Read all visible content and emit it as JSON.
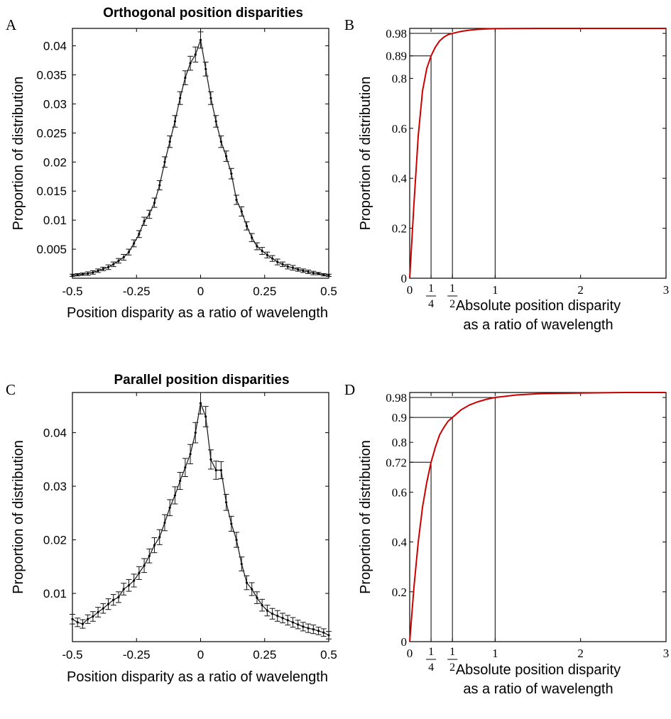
{
  "chart_data": [
    {
      "panel_letter": "A",
      "type": "line",
      "title": "Orthogonal position disparities",
      "xlabel": "Position disparity as a ratio of wavelength",
      "ylabel": "Proportion of distribution",
      "xlim": [
        -0.5,
        0.5
      ],
      "ylim": [
        0,
        0.043
      ],
      "xticks": [
        -0.5,
        -0.25,
        0,
        0.25,
        0.5
      ],
      "xtick_labels": [
        "-0.5",
        "-0.25",
        "0",
        "0.25",
        "0.5"
      ],
      "yticks": [
        0.005,
        0.01,
        0.015,
        0.02,
        0.025,
        0.03,
        0.035,
        0.04
      ],
      "ytick_labels": [
        "0.005",
        "0.01",
        "0.015",
        "0.02",
        "0.025",
        "0.03",
        "0.035",
        "0.04"
      ],
      "error_bars": true,
      "series": [
        {
          "color": "#222222",
          "x": [
            -0.5,
            -0.48,
            -0.46,
            -0.44,
            -0.42,
            -0.4,
            -0.38,
            -0.36,
            -0.34,
            -0.32,
            -0.3,
            -0.28,
            -0.26,
            -0.24,
            -0.22,
            -0.2,
            -0.18,
            -0.16,
            -0.14,
            -0.12,
            -0.1,
            -0.08,
            -0.06,
            -0.04,
            -0.02,
            0,
            0.02,
            0.04,
            0.06,
            0.08,
            0.1,
            0.12,
            0.14,
            0.16,
            0.18,
            0.2,
            0.22,
            0.24,
            0.26,
            0.28,
            0.3,
            0.32,
            0.34,
            0.36,
            0.38,
            0.4,
            0.42,
            0.44,
            0.46,
            0.48,
            0.5
          ],
          "y": [
            0.0005,
            0.0006,
            0.0007,
            0.0008,
            0.001,
            0.0013,
            0.0016,
            0.0019,
            0.0024,
            0.003,
            0.0036,
            0.0045,
            0.006,
            0.0076,
            0.0098,
            0.011,
            0.013,
            0.016,
            0.02,
            0.0235,
            0.027,
            0.031,
            0.0345,
            0.037,
            0.0385,
            0.041,
            0.036,
            0.031,
            0.027,
            0.0235,
            0.021,
            0.018,
            0.0135,
            0.0115,
            0.009,
            0.007,
            0.0055,
            0.0047,
            0.004,
            0.0034,
            0.0028,
            0.0024,
            0.002,
            0.0018,
            0.0015,
            0.0013,
            0.0011,
            0.0009,
            0.0008,
            0.0006,
            0.0005
          ],
          "err": [
            0.0002,
            0.0002,
            0.0002,
            0.0003,
            0.0003,
            0.0003,
            0.0003,
            0.0004,
            0.0004,
            0.0004,
            0.0005,
            0.0005,
            0.0006,
            0.0006,
            0.0007,
            0.0007,
            0.0008,
            0.0008,
            0.0009,
            0.001,
            0.001,
            0.0011,
            0.0012,
            0.0012,
            0.0013,
            0.0014,
            0.0012,
            0.0011,
            0.001,
            0.001,
            0.0009,
            0.0009,
            0.0008,
            0.0008,
            0.0007,
            0.0007,
            0.0006,
            0.0006,
            0.0005,
            0.0005,
            0.0005,
            0.0004,
            0.0004,
            0.0004,
            0.0003,
            0.0003,
            0.0003,
            0.0003,
            0.0002,
            0.0002,
            0.0002
          ]
        }
      ]
    },
    {
      "panel_letter": "B",
      "type": "line",
      "title": "",
      "xlabel_lines": [
        "Absolute position disparity",
        "as a ratio of wavelength"
      ],
      "ylabel": "Proportion of distribution",
      "xlim": [
        0,
        3
      ],
      "ylim": [
        0,
        1
      ],
      "xticks": [
        0,
        0.25,
        0.5,
        1,
        2,
        3
      ],
      "xtick_labels": [
        "0",
        "1/4",
        "1/2",
        "1",
        "2",
        "3"
      ],
      "yticks": [
        0,
        0.2,
        0.4,
        0.6,
        0.8,
        0.89,
        0.98
      ],
      "ytick_labels": [
        "0",
        "0.2",
        "0.4",
        "0.6",
        "0.8",
        "0.89",
        "0.98"
      ],
      "reference_lines": [
        {
          "x": 0.25,
          "y": 0.89
        },
        {
          "x": 0.5,
          "y": 0.98
        },
        {
          "x": 1,
          "y": 1
        }
      ],
      "series": [
        {
          "color": "#cc0000",
          "x": [
            0,
            0.05,
            0.1,
            0.15,
            0.2,
            0.25,
            0.3,
            0.35,
            0.4,
            0.45,
            0.5,
            0.6,
            0.7,
            0.8,
            0.9,
            1,
            1.5,
            2,
            2.5,
            3
          ],
          "y": [
            0,
            0.3,
            0.57,
            0.75,
            0.84,
            0.89,
            0.925,
            0.95,
            0.965,
            0.975,
            0.98,
            0.988,
            0.993,
            0.996,
            0.998,
            0.999,
            1,
            1,
            1,
            1
          ]
        }
      ]
    },
    {
      "panel_letter": "C",
      "type": "line",
      "title": "Parallel position disparities",
      "xlabel": "Position disparity as a ratio of wavelength",
      "ylabel": "Proportion of distribution",
      "xlim": [
        -0.5,
        0.5
      ],
      "ylim": [
        0.001,
        0.0475
      ],
      "xticks": [
        -0.5,
        -0.25,
        0,
        0.25,
        0.5
      ],
      "xtick_labels": [
        "-0.5",
        "-0.25",
        "0",
        "0.25",
        "0.5"
      ],
      "yticks": [
        0.01,
        0.02,
        0.03,
        0.04
      ],
      "ytick_labels": [
        "0.01",
        "0.02",
        "0.03",
        "0.04"
      ],
      "error_bars": true,
      "series": [
        {
          "color": "#222222",
          "x": [
            -0.5,
            -0.48,
            -0.46,
            -0.44,
            -0.42,
            -0.4,
            -0.38,
            -0.36,
            -0.34,
            -0.32,
            -0.3,
            -0.28,
            -0.26,
            -0.24,
            -0.22,
            -0.2,
            -0.18,
            -0.16,
            -0.14,
            -0.12,
            -0.1,
            -0.08,
            -0.06,
            -0.04,
            -0.02,
            0,
            0.02,
            0.04,
            0.06,
            0.08,
            0.1,
            0.12,
            0.14,
            0.16,
            0.18,
            0.2,
            0.22,
            0.24,
            0.26,
            0.28,
            0.3,
            0.32,
            0.34,
            0.36,
            0.38,
            0.4,
            0.42,
            0.44,
            0.46,
            0.48,
            0.5
          ],
          "y": [
            0.0052,
            0.0046,
            0.0043,
            0.0052,
            0.0057,
            0.0065,
            0.0072,
            0.008,
            0.0088,
            0.0093,
            0.0108,
            0.0115,
            0.0124,
            0.0138,
            0.0152,
            0.017,
            0.019,
            0.0205,
            0.0232,
            0.026,
            0.0283,
            0.031,
            0.0335,
            0.036,
            0.04,
            0.0455,
            0.043,
            0.035,
            0.033,
            0.033,
            0.027,
            0.023,
            0.02,
            0.0155,
            0.012,
            0.0108,
            0.0092,
            0.0078,
            0.0068,
            0.0062,
            0.0058,
            0.0054,
            0.005,
            0.0046,
            0.0042,
            0.0038,
            0.0035,
            0.0033,
            0.003,
            0.0027,
            0.0022
          ],
          "err": [
            0.0009,
            0.0008,
            0.0008,
            0.0008,
            0.0009,
            0.0009,
            0.0009,
            0.001,
            0.001,
            0.001,
            0.0011,
            0.0011,
            0.0012,
            0.0012,
            0.0013,
            0.0013,
            0.0014,
            0.0014,
            0.0015,
            0.0015,
            0.0016,
            0.0016,
            0.0017,
            0.0018,
            0.0019,
            0.002,
            0.0019,
            0.0018,
            0.0017,
            0.0016,
            0.0015,
            0.0014,
            0.0014,
            0.0013,
            0.0013,
            0.0012,
            0.0011,
            0.0011,
            0.001,
            0.001,
            0.001,
            0.0009,
            0.0009,
            0.0009,
            0.0008,
            0.0008,
            0.0008,
            0.0008,
            0.0007,
            0.0007,
            0.0007
          ]
        }
      ]
    },
    {
      "panel_letter": "D",
      "type": "line",
      "title": "",
      "xlabel_lines": [
        "Absolute position disparity",
        "as a ratio of wavelength"
      ],
      "ylabel": "Proportion of distribution",
      "xlim": [
        0,
        3
      ],
      "ylim": [
        0,
        1
      ],
      "xticks": [
        0,
        0.25,
        0.5,
        1,
        2,
        3
      ],
      "xtick_labels": [
        "0",
        "1/4",
        "1/2",
        "1",
        "2",
        "3"
      ],
      "yticks": [
        0,
        0.2,
        0.4,
        0.6,
        0.72,
        0.8,
        0.9,
        0.98
      ],
      "ytick_labels": [
        "0",
        "0.2",
        "0.4",
        "0.6",
        "0.72",
        "0.8",
        "0.9",
        "0.98"
      ],
      "reference_lines": [
        {
          "x": 0.25,
          "y": 0.72
        },
        {
          "x": 0.5,
          "y": 0.9
        },
        {
          "x": 1,
          "y": 0.98
        }
      ],
      "series": [
        {
          "color": "#cc0000",
          "x": [
            0,
            0.05,
            0.1,
            0.15,
            0.2,
            0.25,
            0.3,
            0.35,
            0.4,
            0.45,
            0.5,
            0.6,
            0.7,
            0.8,
            0.9,
            1,
            1.25,
            1.5,
            2,
            2.5,
            3
          ],
          "y": [
            0,
            0.22,
            0.4,
            0.54,
            0.64,
            0.72,
            0.78,
            0.83,
            0.86,
            0.885,
            0.9,
            0.93,
            0.95,
            0.963,
            0.973,
            0.98,
            0.99,
            0.995,
            0.998,
            1,
            1
          ]
        }
      ]
    }
  ]
}
